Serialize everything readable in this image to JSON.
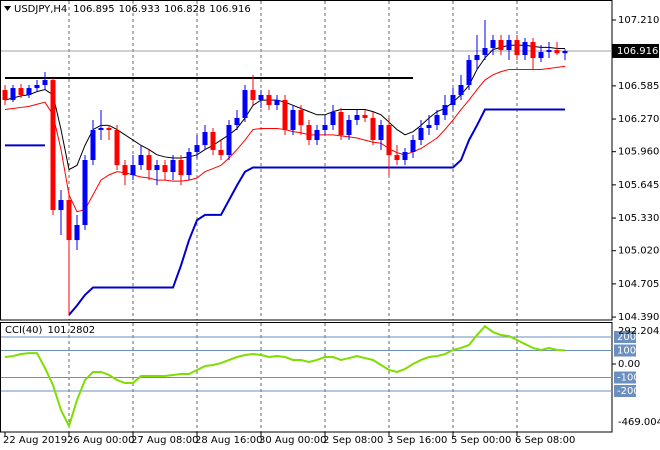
{
  "chart_data": [
    {
      "type": "candlestick",
      "title": "USDJPY,H4",
      "categories": [
        "22 Aug 2019",
        null,
        null,
        null,
        null,
        null,
        null,
        null,
        "26 Aug 00:00",
        null,
        null,
        null,
        null,
        null,
        null,
        null,
        "27 Aug 08:00",
        null,
        null,
        null,
        null,
        null,
        null,
        null,
        "28 Aug 16:00",
        null,
        null,
        null,
        null,
        null,
        null,
        null,
        "30 Aug 00:00",
        null,
        null,
        null,
        null,
        null,
        null,
        null,
        "2 Sep 08:00",
        null,
        null,
        null,
        null,
        null,
        null,
        null,
        "3 Sep 16:00",
        null,
        null,
        null,
        null,
        null,
        null,
        null,
        "5 Sep 00:00",
        null,
        null,
        null,
        null,
        null,
        null,
        null,
        "6 Sep 08:00",
        null,
        null,
        null,
        null,
        null,
        null
      ],
      "open": [
        106.545,
        106.451,
        106.564,
        106.498,
        106.564,
        106.593,
        106.64,
        105.406,
        105.501,
        105.121,
        105.264,
        105.881,
        106.166,
        106.185,
        106.166,
        105.833,
        105.738,
        105.833,
        105.928,
        105.786,
        105.833,
        105.767,
        105.881,
        105.738,
        105.957,
        106.023,
        106.147,
        105.976,
        105.928,
        106.213,
        106.28,
        106.545,
        106.451,
        106.498,
        106.403,
        106.451,
        106.166,
        106.356,
        106.213,
        106.071,
        106.166,
        106.213,
        106.337,
        106.118,
        106.261,
        106.308,
        106.28,
        106.071,
        106.213,
        105.928,
        105.881,
        105.957,
        106.071,
        106.185,
        106.213,
        106.308,
        106.403,
        106.498,
        106.593,
        106.83,
        106.878,
        106.944,
        107.02,
        106.925,
        107.02,
        106.878,
        107.001,
        106.849,
        106.906,
        106.925,
        106.895
      ],
      "high": [
        106.593,
        106.593,
        106.602,
        106.593,
        106.64,
        106.716,
        106.659,
        105.596,
        105.549,
        105.359,
        105.928,
        106.261,
        106.356,
        106.213,
        106.213,
        105.881,
        105.928,
        106.023,
        105.976,
        105.881,
        105.881,
        105.928,
        105.928,
        105.995,
        106.118,
        106.213,
        106.185,
        106.071,
        106.261,
        106.356,
        106.593,
        106.688,
        106.545,
        106.545,
        106.498,
        106.498,
        106.403,
        106.403,
        106.261,
        106.213,
        106.308,
        106.403,
        106.375,
        106.308,
        106.356,
        106.356,
        106.337,
        106.261,
        106.28,
        106.023,
        105.995,
        106.118,
        106.261,
        106.308,
        106.356,
        106.498,
        106.564,
        106.688,
        106.878,
        107.068,
        107.21,
        107.068,
        107.068,
        107.068,
        107.068,
        107.039,
        107.039,
        106.973,
        107.001,
        107.001,
        106.933
      ],
      "low": [
        106.403,
        106.432,
        106.47,
        106.47,
        106.527,
        106.545,
        105.359,
        105.169,
        104.409,
        105.026,
        105.216,
        105.833,
        106.071,
        106.071,
        105.786,
        105.643,
        105.691,
        105.786,
        105.691,
        105.643,
        105.691,
        105.691,
        105.643,
        105.691,
        105.9,
        105.976,
        105.928,
        105.881,
        105.881,
        106.166,
        106.242,
        106.403,
        106.375,
        106.356,
        106.356,
        106.118,
        106.118,
        106.118,
        106.023,
        106.023,
        106.118,
        106.166,
        106.071,
        106.071,
        106.213,
        106.242,
        106.023,
        105.976,
        105.738,
        105.833,
        105.833,
        105.9,
        106.023,
        106.118,
        106.166,
        106.261,
        106.356,
        106.451,
        106.545,
        106.735,
        106.83,
        106.878,
        106.878,
        106.83,
        106.83,
        106.83,
        106.735,
        106.811,
        106.849,
        106.878,
        106.828
      ],
      "close": [
        106.451,
        106.564,
        106.498,
        106.564,
        106.593,
        106.64,
        105.406,
        105.501,
        105.121,
        105.264,
        105.881,
        106.166,
        106.185,
        106.166,
        105.833,
        105.738,
        105.833,
        105.928,
        105.786,
        105.833,
        105.767,
        105.881,
        105.738,
        105.957,
        106.023,
        106.147,
        105.976,
        105.928,
        106.213,
        106.28,
        106.545,
        106.451,
        106.498,
        106.403,
        106.451,
        106.166,
        106.356,
        106.213,
        106.071,
        106.166,
        106.213,
        106.337,
        106.118,
        106.261,
        106.308,
        106.28,
        106.071,
        106.213,
        105.928,
        105.881,
        105.957,
        106.071,
        106.185,
        106.213,
        106.308,
        106.403,
        106.498,
        106.593,
        106.83,
        106.878,
        106.944,
        107.02,
        106.925,
        107.02,
        106.878,
        107.001,
        106.849,
        106.906,
        106.925,
        106.895,
        106.916
      ],
      "up_color": "#0000ff",
      "down_color": "#ff0000",
      "series": [
        {
          "color": "#000000",
          "values": [
            106.45,
            106.47,
            106.49,
            106.5,
            106.53,
            106.55,
            106.5,
            106.17,
            105.79,
            105.83,
            106.02,
            106.17,
            106.21,
            106.21,
            106.17,
            106.12,
            106.07,
            106.02,
            105.98,
            105.93,
            105.91,
            105.9,
            105.9,
            105.91,
            105.93,
            105.98,
            106.02,
            106.07,
            106.12,
            106.18,
            106.28,
            106.4,
            106.45,
            106.45,
            106.45,
            106.43,
            106.4,
            106.37,
            106.34,
            106.31,
            106.31,
            106.34,
            106.36,
            106.36,
            106.36,
            106.36,
            106.34,
            106.31,
            106.24,
            106.17,
            106.12,
            106.15,
            106.21,
            106.28,
            106.34,
            106.37,
            106.43,
            106.5,
            106.59,
            106.74,
            106.85,
            106.93,
            106.95,
            106.97,
            106.97,
            106.97,
            106.96,
            106.95,
            106.95,
            106.94,
            106.94
          ]
        },
        {
          "color": "#ff0000",
          "values": [
            106.36,
            106.37,
            106.38,
            106.39,
            106.41,
            106.43,
            106.31,
            105.98,
            105.55,
            105.39,
            105.41,
            105.55,
            105.69,
            105.74,
            105.77,
            105.76,
            105.74,
            105.72,
            105.71,
            105.69,
            105.69,
            105.68,
            105.68,
            105.69,
            105.71,
            105.77,
            105.8,
            105.83,
            105.9,
            105.98,
            106.07,
            106.17,
            106.18,
            106.18,
            106.18,
            106.17,
            106.15,
            106.14,
            106.12,
            106.12,
            106.12,
            106.12,
            106.11,
            106.1,
            106.09,
            106.07,
            106.05,
            106.04,
            105.99,
            105.95,
            105.93,
            105.96,
            105.99,
            106.04,
            106.09,
            106.17,
            106.26,
            106.36,
            106.45,
            106.55,
            106.64,
            106.69,
            106.72,
            106.74,
            106.74,
            106.74,
            106.74,
            106.74,
            106.75,
            106.76,
            106.77
          ]
        },
        {
          "color": "#0000cc",
          "width": 2,
          "values": [
            106.02,
            106.02,
            106.02,
            106.02,
            106.02,
            106.02,
            null,
            null,
            104.41,
            104.5,
            104.6,
            104.67,
            104.67,
            104.67,
            104.67,
            104.67,
            104.67,
            104.67,
            104.67,
            104.67,
            104.67,
            104.67,
            104.88,
            105.12,
            105.31,
            105.36,
            105.36,
            105.36,
            105.5,
            105.64,
            105.77,
            105.81,
            105.81,
            105.81,
            105.81,
            105.81,
            105.81,
            105.81,
            105.81,
            105.81,
            105.81,
            105.81,
            105.81,
            105.81,
            105.81,
            105.81,
            105.81,
            105.81,
            105.81,
            105.81,
            105.81,
            105.81,
            105.81,
            105.81,
            105.81,
            105.81,
            105.81,
            105.88,
            106.07,
            106.21,
            106.36,
            106.36,
            106.36,
            106.36,
            106.36,
            106.36,
            106.36,
            106.36,
            106.36,
            106.36,
            106.36
          ]
        },
        {
          "color": "#000000",
          "width": 2,
          "values": [
            106.66,
            106.66,
            106.66,
            106.66,
            106.66,
            106.66,
            106.66,
            106.66,
            106.66,
            106.66,
            106.66,
            106.66,
            106.66,
            106.66,
            106.66,
            106.66,
            106.66,
            106.66,
            106.66,
            106.66,
            106.66,
            106.66,
            106.66,
            106.66,
            106.66,
            106.66,
            106.66,
            106.66,
            106.66,
            106.66,
            106.66,
            106.66,
            106.66,
            106.66,
            106.66,
            106.66,
            106.66,
            106.66,
            106.66,
            106.66,
            106.66,
            106.66,
            106.66,
            106.66,
            106.66,
            106.66,
            106.66,
            106.66,
            106.66,
            106.66,
            106.66,
            106.66,
            null,
            null,
            null,
            null,
            null,
            null,
            null,
            null,
            null,
            null,
            null,
            null,
            null,
            null,
            null,
            null,
            null,
            null,
            null
          ]
        }
      ],
      "ylim": [
        104.362,
        107.381
      ],
      "yticks": [
        {
          "value": 107.21,
          "label": "107.210"
        },
        106.585,
        {
          "value": 106.27,
          "label": "106.270"
        },
        {
          "value": 105.96,
          "label": "105.960"
        },
        105.645,
        {
          "value": 105.33,
          "label": "105.330"
        },
        {
          "value": 105.02,
          "label": "105.020"
        },
        104.705,
        {
          "value": 104.39,
          "label": "104.390"
        }
      ],
      "grid": true
    },
    {
      "type": "line",
      "title": "CCI(40)",
      "color": "#7fdd00",
      "values": [
        52,
        59,
        74,
        81,
        81,
        -30,
        -156,
        -341,
        -460,
        -267,
        -119,
        -59,
        -59,
        -81,
        -119,
        -141,
        -141,
        -89,
        -89,
        -89,
        -89,
        -81,
        -74,
        -74,
        -44,
        -15,
        -7,
        7,
        30,
        52,
        67,
        74,
        67,
        52,
        59,
        52,
        30,
        30,
        15,
        30,
        52,
        52,
        30,
        44,
        59,
        44,
        30,
        -7,
        -44,
        -59,
        -37,
        0,
        30,
        52,
        59,
        74,
        104,
        119,
        141,
        215,
        280,
        237,
        215,
        207,
        178,
        148,
        119,
        104,
        119,
        104,
        101.2802
      ],
      "ylim": [
        -469.0048,
        292.2048
      ],
      "yticks": [
        200,
        100,
        {
          "value": 0,
          "label": "0.00"
        },
        -100,
        -200
      ]
    }
  ]
}
